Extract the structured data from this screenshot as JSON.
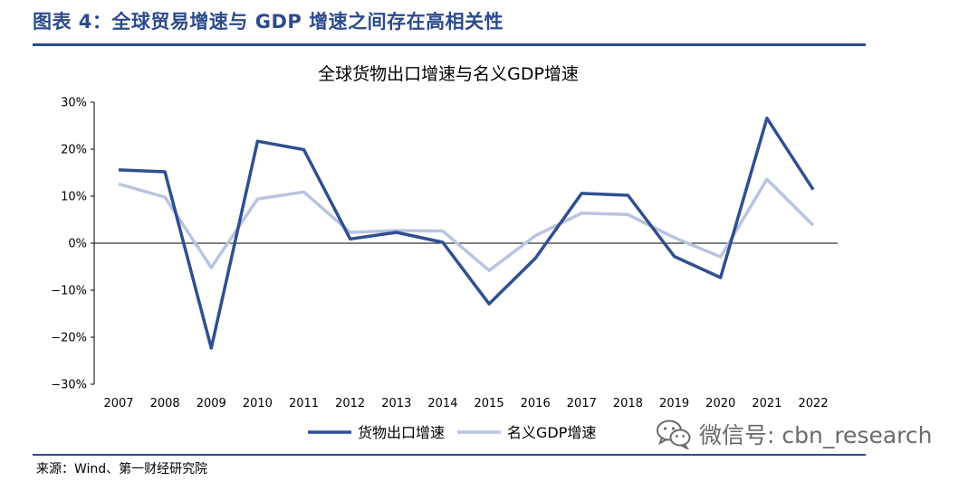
{
  "header": {
    "title": "图表 4：全球贸易增速与 GDP 增速之间存在高相关性"
  },
  "footer": {
    "source": "来源：Wind、第一财经研究院"
  },
  "watermark": {
    "text": "微信号: cbn_research",
    "icon": "wechat-icon"
  },
  "colors": {
    "brand": "#2c4a8c",
    "series_export": "#2f4f8f",
    "series_gdp": "#b8c4e0"
  },
  "chart_data": {
    "type": "line",
    "title": "全球货物出口增速与名义GDP增速",
    "xlabel": "",
    "ylabel": "",
    "x": [
      "2007",
      "2008",
      "2009",
      "2010",
      "2011",
      "2012",
      "2013",
      "2014",
      "2015",
      "2016",
      "2017",
      "2018",
      "2019",
      "2020",
      "2021",
      "2022"
    ],
    "ylim": [
      -30,
      30
    ],
    "y_ticks": [
      30,
      20,
      10,
      0,
      -10,
      -20,
      -30
    ],
    "y_tick_labels": [
      "30%",
      "20%",
      "10%",
      "0%",
      "−10%",
      "−20%",
      "−30%"
    ],
    "grid": false,
    "legend_position": "bottom",
    "series": [
      {
        "name": "货物出口增速",
        "values": [
          15.6,
          15.2,
          -22.3,
          21.7,
          19.9,
          0.9,
          2.3,
          0.2,
          -12.9,
          -3.2,
          10.6,
          10.2,
          -2.8,
          -7.3,
          26.6,
          11.4
        ]
      },
      {
        "name": "名义GDP增速",
        "values": [
          12.6,
          9.8,
          -5.2,
          9.4,
          10.9,
          2.3,
          2.7,
          2.6,
          -5.8,
          1.6,
          6.4,
          6.1,
          1.2,
          -2.9,
          13.6,
          3.8
        ]
      }
    ]
  }
}
